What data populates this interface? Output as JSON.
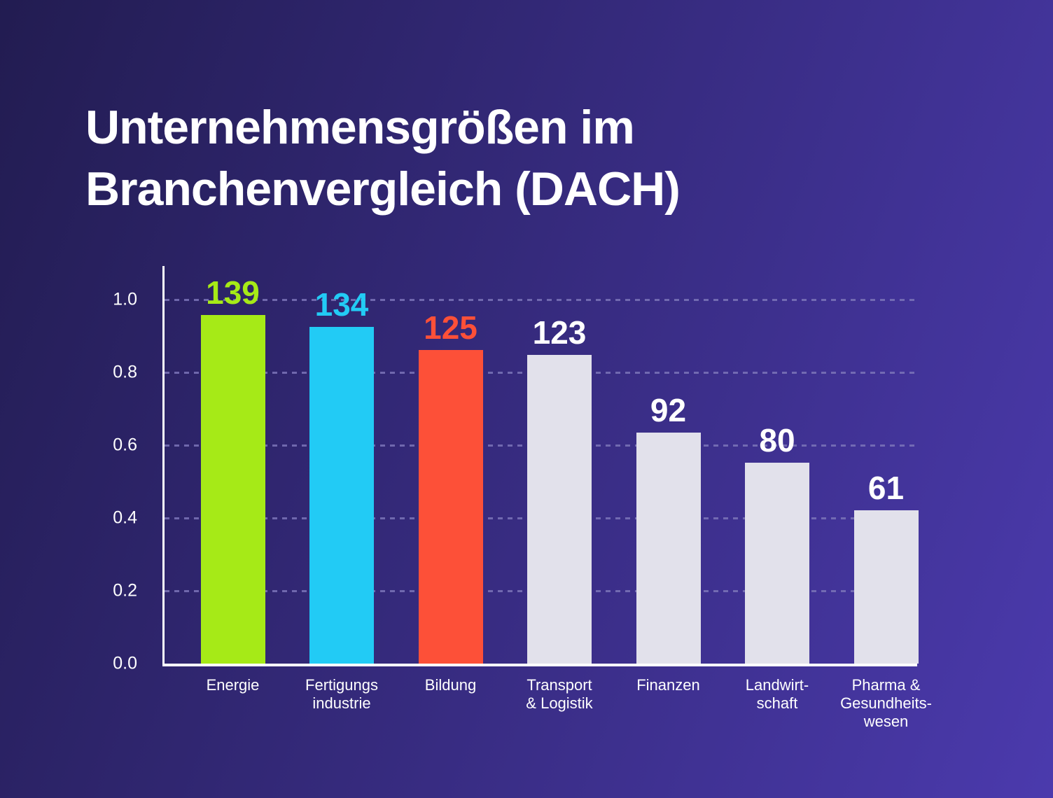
{
  "title": {
    "line1": "Unternehmensgrößen im",
    "line2": "Branchenvergleich (DACH)"
  },
  "chart_data": {
    "type": "bar",
    "title": "Unternehmensgrößen im Branchenvergleich (DACH)",
    "categories": [
      "Energie",
      "Fertigungs\nindustrie",
      "Bildung",
      "Transport\n& Logistik",
      "Finanzen",
      "Landwirt-\nschaft",
      "Pharma &\nGesundheits-\nwesen"
    ],
    "values": [
      139,
      134,
      125,
      123,
      92,
      80,
      61
    ],
    "value_scale_max": 145,
    "y_ticks": [
      "1.0",
      "0.8",
      "0.6",
      "0.4",
      "0.2",
      "0.0"
    ],
    "y_tick_values": [
      1.0,
      0.8,
      0.6,
      0.4,
      0.2,
      0.0
    ],
    "ylim": [
      0,
      1.09
    ],
    "grid": "dashed horizontal gridlines",
    "legend": "none",
    "xlabel": "",
    "ylabel": "",
    "bar_colors": [
      "#a6ea17",
      "#22cbf5",
      "#fd5038",
      "#e2e1eb",
      "#e2e1eb",
      "#e2e1eb",
      "#e2e1eb"
    ],
    "value_label_colors": [
      "#a6ea17",
      "#22cbf5",
      "#fd5038",
      "#ffffff",
      "#ffffff",
      "#ffffff",
      "#ffffff"
    ]
  },
  "theme": {
    "background_gradient_start": "#221c51",
    "background_gradient_end": "#4b3aad",
    "axis_color": "#ffffff",
    "gridline_color": "#7b74b8",
    "text_color": "#ffffff"
  }
}
